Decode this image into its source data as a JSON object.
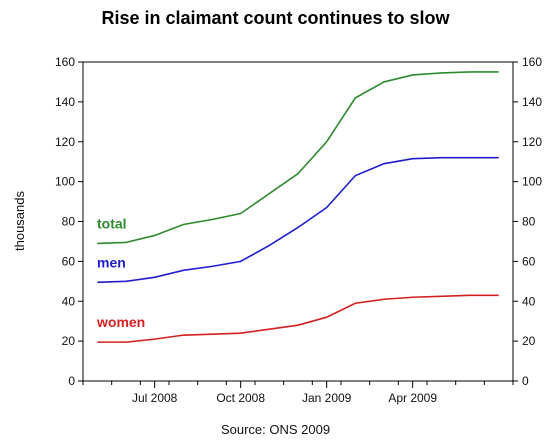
{
  "chart_data": {
    "type": "line",
    "title": "Rise in claimant count continues to slow",
    "ylabel": "thousands",
    "source": "Source: ONS 2009",
    "ylim": [
      0,
      160
    ],
    "yticks": [
      0,
      20,
      40,
      60,
      80,
      100,
      120,
      140,
      160
    ],
    "x": [
      0,
      1,
      2,
      3,
      4,
      5,
      6,
      7,
      8,
      9,
      10,
      11,
      12,
      13,
      14
    ],
    "xlim": [
      -0.5,
      14.5
    ],
    "xtick_labels": [
      {
        "label": "Jul 2008",
        "x": 2
      },
      {
        "label": "Oct 2008",
        "x": 5
      },
      {
        "label": "Jan 2009",
        "x": 8
      },
      {
        "label": "Apr 2009",
        "x": 11
      }
    ],
    "right_axis": true,
    "grid": false,
    "series": [
      {
        "name": "total",
        "color": "#2e8b2e",
        "values": [
          69,
          69.5,
          73,
          78.5,
          81,
          84,
          94,
          104,
          120,
          142,
          150,
          153.5,
          154.5,
          155,
          155
        ]
      },
      {
        "name": "men",
        "color": "#1f1fd0",
        "values": [
          49.5,
          50,
          52,
          55.5,
          57.5,
          60,
          68,
          77,
          87,
          103,
          109,
          111.5,
          112,
          112,
          112
        ]
      },
      {
        "name": "women",
        "color": "#d42020",
        "values": [
          19.5,
          19.5,
          21,
          23,
          23.5,
          24,
          26,
          28,
          32,
          39,
          41,
          42,
          42.5,
          43,
          43
        ]
      }
    ]
  }
}
